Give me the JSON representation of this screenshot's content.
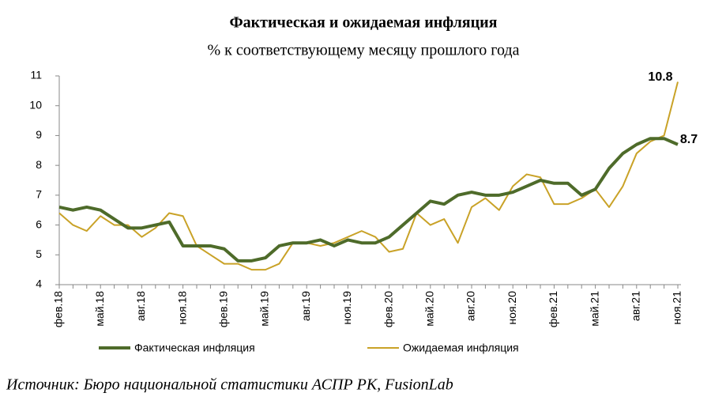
{
  "chart_data": {
    "type": "line",
    "title": "Фактическая и ожидаемая инфляция",
    "subtitle": "% к соответствующему месяцу прошлого года",
    "source": "Источник: Бюро национальной статистики АСПР РК, FusionLab",
    "categories": [
      "фев.18",
      null,
      null,
      "май.18",
      null,
      null,
      "авг.18",
      null,
      null,
      "ноя.18",
      null,
      null,
      "фев.19",
      null,
      null,
      "май.19",
      null,
      null,
      "авг.19",
      null,
      null,
      "ноя.19",
      null,
      null,
      "фев.20",
      null,
      null,
      "май.20",
      null,
      null,
      "авг.20",
      null,
      null,
      "ноя.20",
      null,
      null,
      "фев.21",
      null,
      null,
      "май.21",
      null,
      null,
      "авг.21",
      null,
      null,
      "ноя.21"
    ],
    "series": [
      {
        "name": "Фактическая инфляция",
        "color": "#4e6b2a",
        "width": 4,
        "values": [
          6.6,
          6.5,
          6.6,
          6.5,
          6.2,
          5.9,
          5.9,
          6.0,
          6.1,
          5.3,
          5.3,
          5.3,
          5.2,
          4.8,
          4.8,
          4.9,
          5.3,
          5.4,
          5.4,
          5.5,
          5.3,
          5.5,
          5.4,
          5.4,
          5.6,
          6.0,
          6.4,
          6.8,
          6.7,
          7.0,
          7.1,
          7.0,
          7.0,
          7.1,
          7.3,
          7.5,
          7.4,
          7.4,
          7.0,
          7.2,
          7.9,
          8.4,
          8.7,
          8.9,
          8.9,
          8.7
        ]
      },
      {
        "name": "Ожидаемая инфляция",
        "color": "#c9a227",
        "width": 2,
        "values": [
          6.4,
          6.0,
          5.8,
          6.3,
          6.0,
          6.0,
          5.6,
          5.9,
          6.4,
          6.3,
          5.3,
          5.0,
          4.7,
          4.7,
          4.5,
          4.5,
          4.7,
          5.4,
          5.4,
          5.3,
          5.4,
          5.6,
          5.8,
          5.6,
          5.1,
          5.2,
          6.4,
          6.0,
          6.2,
          5.4,
          6.6,
          6.9,
          6.5,
          7.3,
          7.7,
          7.6,
          6.7,
          6.7,
          6.9,
          7.2,
          6.6,
          7.3,
          8.4,
          8.8,
          9.0,
          10.8
        ]
      }
    ],
    "ylim": [
      4,
      11
    ],
    "yticks": [
      4,
      5,
      6,
      7,
      8,
      9,
      10,
      11
    ],
    "grid": false
  }
}
